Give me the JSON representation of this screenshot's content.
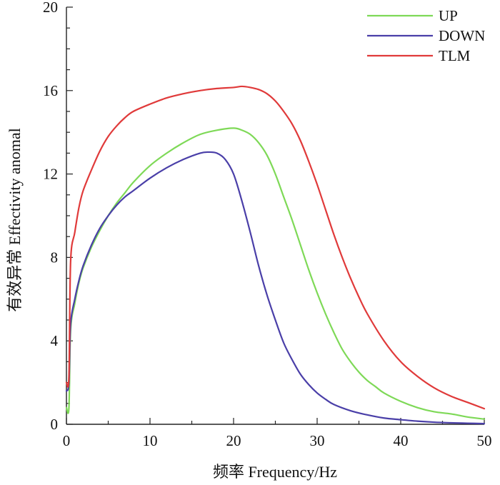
{
  "chart_data": {
    "type": "line",
    "title": "",
    "xlabel": "频率 Frequency/Hz",
    "ylabel": "有效异常 Effectivity anomal",
    "xlim": [
      0,
      50
    ],
    "ylim": [
      0,
      20
    ],
    "xticks": [
      0,
      10,
      20,
      30,
      40,
      50
    ],
    "yticks": [
      0,
      4,
      8,
      12,
      16,
      20
    ],
    "xtick_labels": [
      "0",
      "10",
      "20",
      "30",
      "40",
      "50"
    ],
    "ytick_labels": [
      "0",
      "4",
      "8",
      "12",
      "16",
      "20"
    ],
    "legend_position": "top-right",
    "grid": false,
    "series": [
      {
        "name": "UP",
        "color": "#7ed957",
        "x": [
          0,
          0.3,
          0.5,
          1,
          1.5,
          2,
          3,
          4,
          5,
          6,
          7,
          8,
          10,
          12,
          14,
          16,
          18,
          20,
          21,
          22,
          23,
          24,
          25,
          26,
          27,
          28,
          29,
          30,
          31,
          32,
          33,
          34,
          35,
          36,
          37,
          38,
          40,
          42,
          44,
          46,
          48,
          50
        ],
        "y": [
          0.8,
          0.8,
          4.5,
          5.8,
          6.8,
          7.5,
          8.5,
          9.3,
          10.0,
          10.6,
          11.1,
          11.6,
          12.4,
          13.0,
          13.5,
          13.9,
          14.1,
          14.2,
          14.1,
          13.9,
          13.5,
          12.9,
          12.0,
          10.9,
          9.8,
          8.6,
          7.4,
          6.3,
          5.3,
          4.4,
          3.6,
          3.0,
          2.5,
          2.1,
          1.8,
          1.5,
          1.1,
          0.8,
          0.6,
          0.5,
          0.35,
          0.25
        ]
      },
      {
        "name": "DOWN",
        "color": "#4a3fa8",
        "x": [
          0,
          0.3,
          0.5,
          1,
          1.5,
          2,
          3,
          4,
          5,
          6,
          7,
          8,
          10,
          12,
          14,
          16,
          17,
          18,
          19,
          20,
          21,
          22,
          23,
          24,
          25,
          26,
          27,
          28,
          29,
          30,
          31,
          32,
          34,
          36,
          38,
          40,
          42,
          44,
          46,
          48,
          50
        ],
        "y": [
          1.6,
          2.0,
          4.8,
          6.0,
          6.9,
          7.6,
          8.6,
          9.4,
          10.0,
          10.5,
          10.9,
          11.2,
          11.8,
          12.3,
          12.7,
          13.0,
          13.05,
          13.0,
          12.7,
          12.0,
          10.7,
          9.2,
          7.6,
          6.2,
          5.0,
          3.9,
          3.1,
          2.4,
          1.9,
          1.5,
          1.2,
          0.95,
          0.65,
          0.45,
          0.3,
          0.22,
          0.15,
          0.1,
          0.07,
          0.05,
          0.03
        ]
      },
      {
        "name": "TLM",
        "color": "#e03a3a",
        "x": [
          0,
          0.3,
          0.5,
          1,
          1.5,
          2,
          3,
          4,
          5,
          6,
          7,
          8,
          10,
          12,
          14,
          16,
          18,
          20,
          21,
          22,
          23,
          24,
          25,
          26,
          27,
          28,
          29,
          30,
          31,
          32,
          33,
          34,
          35,
          36,
          38,
          40,
          42,
          44,
          46,
          48,
          50
        ],
        "y": [
          2.0,
          2.3,
          7.8,
          9.2,
          10.4,
          11.2,
          12.2,
          13.1,
          13.8,
          14.3,
          14.7,
          15.0,
          15.35,
          15.65,
          15.85,
          16.0,
          16.1,
          16.15,
          16.2,
          16.15,
          16.05,
          15.85,
          15.5,
          15.0,
          14.4,
          13.6,
          12.6,
          11.5,
          10.3,
          9.1,
          8.0,
          7.0,
          6.1,
          5.3,
          4.0,
          3.0,
          2.3,
          1.75,
          1.35,
          1.05,
          0.75
        ]
      }
    ]
  }
}
